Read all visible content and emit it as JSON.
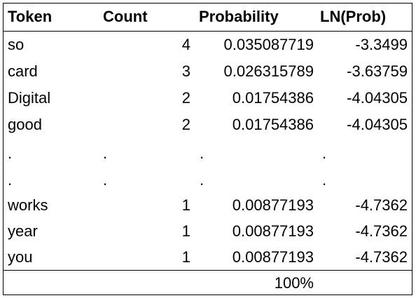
{
  "headers": {
    "token": "Token",
    "count": "Count",
    "probability": "Probability",
    "ln_prob": "LN(Prob)"
  },
  "rows": [
    {
      "token": "so",
      "count": "4",
      "probability": "0.035087719",
      "ln_prob": "-3.3499"
    },
    {
      "token": "card",
      "count": "3",
      "probability": "0.026315789",
      "ln_prob": "-3.63759"
    },
    {
      "token": "Digital",
      "count": "2",
      "probability": "0.01754386",
      "ln_prob": "-4.04305"
    },
    {
      "token": "good",
      "count": "2",
      "probability": "0.01754386",
      "ln_prob": "-4.04305"
    },
    {
      "token": ".",
      "count": ".",
      "probability": ".",
      "ln_prob": "."
    },
    {
      "token": ".",
      "count": ".",
      "probability": ".",
      "ln_prob": "."
    },
    {
      "token": "works",
      "count": "1",
      "probability": "0.00877193",
      "ln_prob": "-4.7362"
    },
    {
      "token": "year",
      "count": "1",
      "probability": "0.00877193",
      "ln_prob": "-4.7362"
    },
    {
      "token": "you",
      "count": "1",
      "probability": "0.00877193",
      "ln_prob": "-4.7362"
    }
  ],
  "footer": {
    "probability_total": "100%"
  }
}
